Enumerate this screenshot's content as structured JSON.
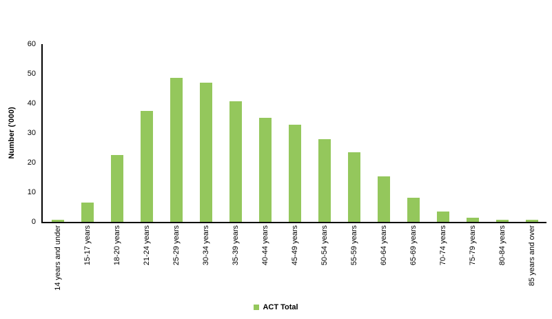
{
  "chart_data": {
    "type": "bar",
    "title": "",
    "xlabel": "",
    "ylabel": "Number ('000)",
    "categories": [
      "14 years and under",
      "15-17 years",
      "18-20 years",
      "21-24 years",
      "25-29 years",
      "30-34 years",
      "35-39 years",
      "40-44 years",
      "45-49 years",
      "50-54 years",
      "55-59 years",
      "60-64 years",
      "65-69 years",
      "70-74 years",
      "75-79 years",
      "80-84 years",
      "85 years and over"
    ],
    "series": [
      {
        "name": "ACT Total",
        "color": "#94C75C",
        "values": [
          0.6,
          6.5,
          22.6,
          37.4,
          48.5,
          46.9,
          40.7,
          35.1,
          32.8,
          28.0,
          23.4,
          15.4,
          8.1,
          3.4,
          1.5,
          0.8,
          0.6
        ]
      }
    ],
    "ylim": [
      0,
      60
    ],
    "yticks": [
      0,
      10,
      20,
      30,
      40,
      50,
      60
    ],
    "grid": false,
    "legend_position": "bottom-center"
  },
  "colors": {
    "bar": "#94C75C",
    "axis": "#000000",
    "text": "#000000",
    "background": "#FFFFFF"
  }
}
